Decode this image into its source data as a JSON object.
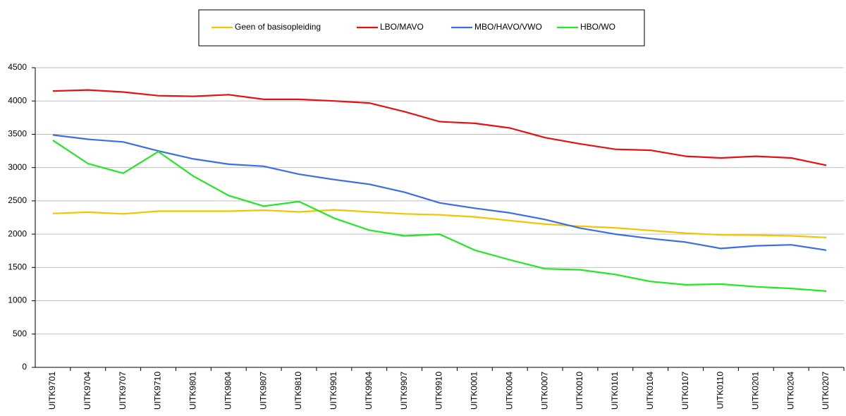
{
  "chart_data": {
    "type": "line",
    "categories": [
      "UITK9701",
      "UITK9704",
      "UITK9707",
      "UITK9710",
      "UITK9801",
      "UITK9804",
      "UITK9807",
      "UITK9810",
      "UITK9901",
      "UITK9904",
      "UITK9907",
      "UITK9910",
      "UITK0001",
      "UITK0004",
      "UITK0007",
      "UITK0010",
      "UITK0101",
      "UITK0104",
      "UITK0107",
      "UITK0110",
      "UITK0201",
      "UITK0204",
      "UITK0207"
    ],
    "series": [
      {
        "name": "Geen of basisopleiding",
        "color": "#f5c400",
        "values": [
          2310,
          2330,
          2305,
          2345,
          2345,
          2345,
          2360,
          2335,
          2365,
          2335,
          2305,
          2290,
          2260,
          2205,
          2150,
          2120,
          2095,
          2055,
          2015,
          1990,
          1985,
          1975,
          1950
        ]
      },
      {
        "name": "LBO/MAVO",
        "color": "#e81010",
        "values": [
          4150,
          4165,
          4135,
          4080,
          4070,
          4095,
          4025,
          4025,
          4000,
          3970,
          3840,
          3690,
          3665,
          3595,
          3450,
          3355,
          3275,
          3260,
          3170,
          3145,
          3170,
          3145,
          3035
        ]
      },
      {
        "name": "MBO/HAVO/VWO",
        "color": "#3a6ee8",
        "values": [
          3490,
          3425,
          3385,
          3250,
          3130,
          3050,
          3020,
          2900,
          2820,
          2750,
          2630,
          2470,
          2390,
          2320,
          2220,
          2090,
          2000,
          1935,
          1880,
          1785,
          1825,
          1840,
          1760
        ]
      },
      {
        "name": "HBO/WO",
        "color": "#22e822",
        "values": [
          3410,
          3060,
          2915,
          3240,
          2870,
          2580,
          2420,
          2490,
          2240,
          2060,
          1975,
          2000,
          1760,
          1615,
          1480,
          1465,
          1395,
          1290,
          1240,
          1250,
          1210,
          1185,
          1145
        ]
      }
    ],
    "ylim": [
      0,
      4500
    ],
    "yticks": [
      0,
      500,
      1000,
      1500,
      2000,
      2500,
      3000,
      3500,
      4000,
      4500
    ],
    "grid": true,
    "legend": "top"
  }
}
